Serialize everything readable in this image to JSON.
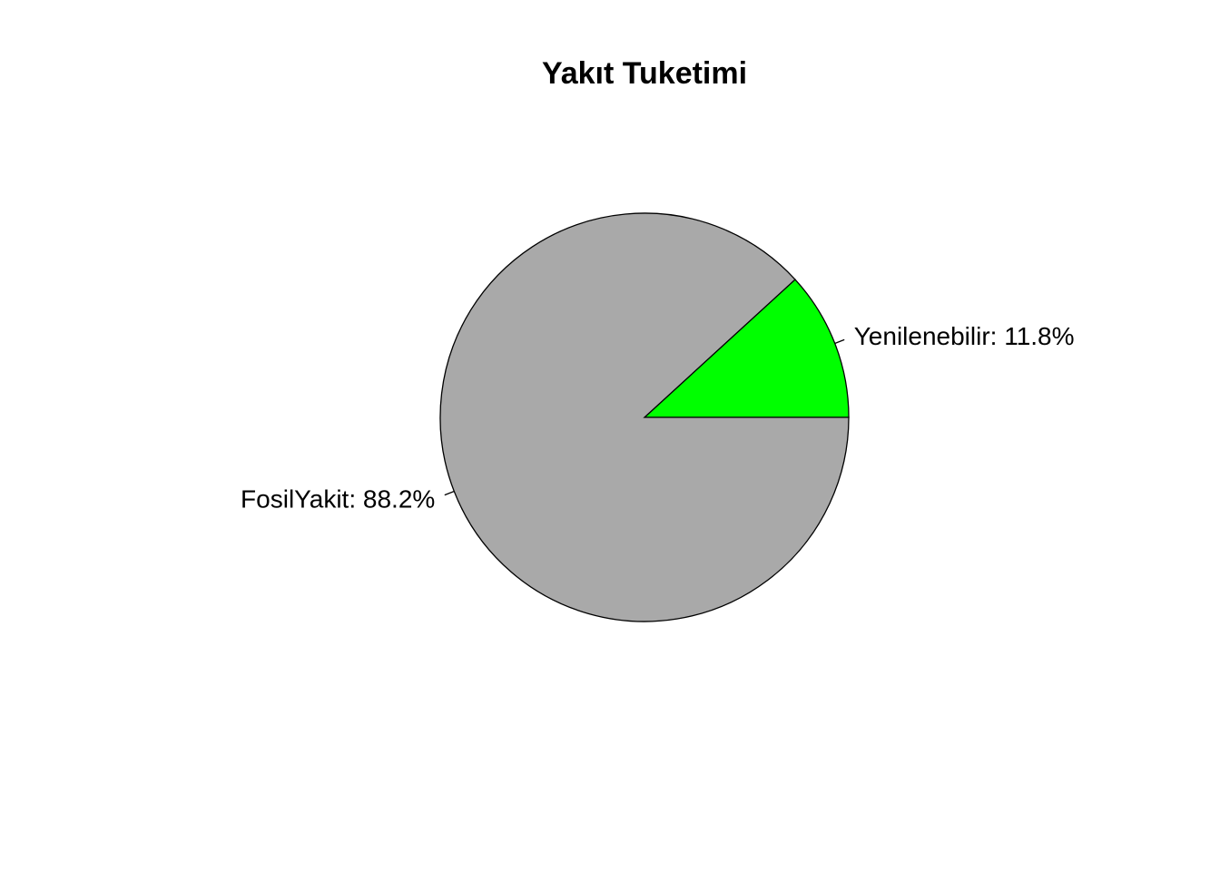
{
  "chart_data": {
    "type": "pie",
    "title": "Yakıt Tuketimi",
    "slices": [
      {
        "label": "Yenilenebilir: 11.8%",
        "category": "Yenilenebilir",
        "value": 11.8,
        "color": "#00ff00"
      },
      {
        "label": "FosilYakit: 88.2%",
        "category": "FosilYakit",
        "value": 88.2,
        "color": "#a9a9a9"
      }
    ],
    "direction": "counterclockwise",
    "start_angle": "3 o'clock",
    "legend": "none"
  }
}
